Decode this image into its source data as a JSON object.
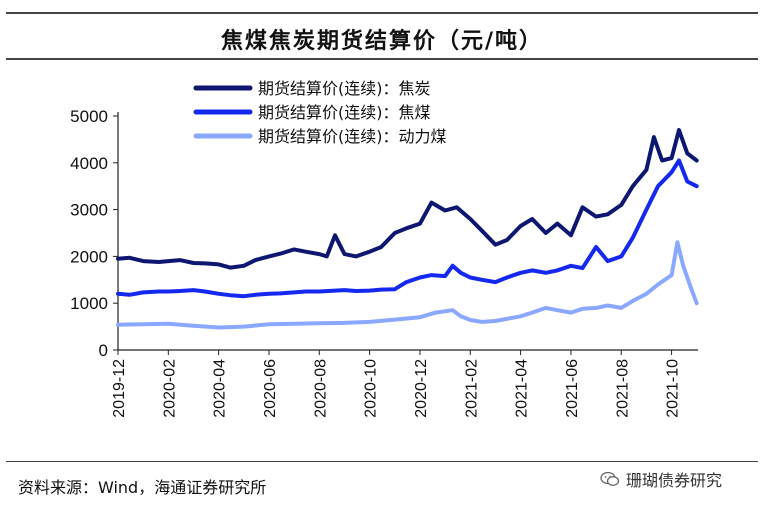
{
  "title": "焦煤焦炭期货结算价（元/吨）",
  "source": "资料来源：Wind，海通证券研究所",
  "watermark": "珊瑚债券研究",
  "chart_data": {
    "type": "line",
    "title": "焦煤焦炭期货结算价（元/吨）",
    "xlabel": "",
    "ylabel": "",
    "ylim": [
      0,
      5000
    ],
    "yticks": [
      0,
      1000,
      2000,
      3000,
      4000,
      5000
    ],
    "xlim": [
      "2019-12",
      "2021-11"
    ],
    "xticks": [
      "2019-12",
      "2020-02",
      "2020-04",
      "2020-06",
      "2020-08",
      "2020-10",
      "2020-12",
      "2021-02",
      "2021-04",
      "2021-06",
      "2021-08",
      "2021-10"
    ],
    "legend_position": "top",
    "series": [
      {
        "name": "期货结算价(连续)：焦炭",
        "color": "#0d1670",
        "points": [
          [
            "2019-12-01",
            1950
          ],
          [
            "2019-12-15",
            1970
          ],
          [
            "2020-01-01",
            1900
          ],
          [
            "2020-01-20",
            1880
          ],
          [
            "2020-02-01",
            1900
          ],
          [
            "2020-02-15",
            1920
          ],
          [
            "2020-03-01",
            1860
          ],
          [
            "2020-03-15",
            1850
          ],
          [
            "2020-04-01",
            1830
          ],
          [
            "2020-04-15",
            1760
          ],
          [
            "2020-05-01",
            1800
          ],
          [
            "2020-05-15",
            1920
          ],
          [
            "2020-06-01",
            2000
          ],
          [
            "2020-06-15",
            2060
          ],
          [
            "2020-07-01",
            2150
          ],
          [
            "2020-07-15",
            2100
          ],
          [
            "2020-08-01",
            2050
          ],
          [
            "2020-08-10",
            2000
          ],
          [
            "2020-08-20",
            2450
          ],
          [
            "2020-09-01",
            2050
          ],
          [
            "2020-09-15",
            2000
          ],
          [
            "2020-10-01",
            2100
          ],
          [
            "2020-10-15",
            2200
          ],
          [
            "2020-11-01",
            2500
          ],
          [
            "2020-11-15",
            2600
          ],
          [
            "2020-12-01",
            2700
          ],
          [
            "2020-12-15",
            3150
          ],
          [
            "2021-01-01",
            2980
          ],
          [
            "2021-01-15",
            3050
          ],
          [
            "2021-02-01",
            2800
          ],
          [
            "2021-02-15",
            2550
          ],
          [
            "2021-03-01",
            2250
          ],
          [
            "2021-03-15",
            2350
          ],
          [
            "2021-04-01",
            2650
          ],
          [
            "2021-04-15",
            2800
          ],
          [
            "2021-05-01",
            2500
          ],
          [
            "2021-05-15",
            2700
          ],
          [
            "2021-06-01",
            2450
          ],
          [
            "2021-06-15",
            3050
          ],
          [
            "2021-07-01",
            2850
          ],
          [
            "2021-07-15",
            2900
          ],
          [
            "2021-08-01",
            3100
          ],
          [
            "2021-08-15",
            3500
          ],
          [
            "2021-09-01",
            3850
          ],
          [
            "2021-09-10",
            4550
          ],
          [
            "2021-09-20",
            4050
          ],
          [
            "2021-10-01",
            4100
          ],
          [
            "2021-10-10",
            4700
          ],
          [
            "2021-10-20",
            4200
          ],
          [
            "2021-11-01",
            4050
          ]
        ]
      },
      {
        "name": "期货结算价(连续)：焦煤",
        "color": "#1428f0",
        "points": [
          [
            "2019-12-01",
            1200
          ],
          [
            "2019-12-15",
            1180
          ],
          [
            "2020-01-01",
            1230
          ],
          [
            "2020-01-20",
            1250
          ],
          [
            "2020-02-01",
            1250
          ],
          [
            "2020-02-15",
            1260
          ],
          [
            "2020-03-01",
            1280
          ],
          [
            "2020-03-15",
            1250
          ],
          [
            "2020-04-01",
            1200
          ],
          [
            "2020-04-15",
            1170
          ],
          [
            "2020-05-01",
            1150
          ],
          [
            "2020-05-15",
            1180
          ],
          [
            "2020-06-01",
            1200
          ],
          [
            "2020-06-15",
            1210
          ],
          [
            "2020-07-01",
            1230
          ],
          [
            "2020-07-15",
            1250
          ],
          [
            "2020-08-01",
            1250
          ],
          [
            "2020-08-20",
            1270
          ],
          [
            "2020-09-01",
            1280
          ],
          [
            "2020-09-15",
            1260
          ],
          [
            "2020-10-01",
            1270
          ],
          [
            "2020-10-15",
            1290
          ],
          [
            "2020-11-01",
            1300
          ],
          [
            "2020-11-15",
            1450
          ],
          [
            "2020-12-01",
            1550
          ],
          [
            "2020-12-15",
            1600
          ],
          [
            "2021-01-01",
            1580
          ],
          [
            "2021-01-10",
            1800
          ],
          [
            "2021-01-20",
            1650
          ],
          [
            "2021-02-01",
            1550
          ],
          [
            "2021-02-15",
            1500
          ],
          [
            "2021-03-01",
            1450
          ],
          [
            "2021-03-15",
            1550
          ],
          [
            "2021-04-01",
            1650
          ],
          [
            "2021-04-15",
            1700
          ],
          [
            "2021-05-01",
            1650
          ],
          [
            "2021-05-15",
            1700
          ],
          [
            "2021-06-01",
            1800
          ],
          [
            "2021-06-15",
            1750
          ],
          [
            "2021-07-01",
            2200
          ],
          [
            "2021-07-15",
            1900
          ],
          [
            "2021-08-01",
            2000
          ],
          [
            "2021-08-15",
            2400
          ],
          [
            "2021-09-01",
            3000
          ],
          [
            "2021-09-15",
            3500
          ],
          [
            "2021-10-01",
            3800
          ],
          [
            "2021-10-10",
            4050
          ],
          [
            "2021-10-20",
            3600
          ],
          [
            "2021-11-01",
            3500
          ]
        ]
      },
      {
        "name": "期货结算价(连续)：动力煤",
        "color": "#8aa8ff",
        "points": [
          [
            "2019-12-01",
            540
          ],
          [
            "2020-01-01",
            550
          ],
          [
            "2020-02-01",
            560
          ],
          [
            "2020-03-01",
            520
          ],
          [
            "2020-04-01",
            480
          ],
          [
            "2020-05-01",
            500
          ],
          [
            "2020-06-01",
            550
          ],
          [
            "2020-07-01",
            560
          ],
          [
            "2020-08-01",
            570
          ],
          [
            "2020-09-01",
            580
          ],
          [
            "2020-10-01",
            600
          ],
          [
            "2020-11-01",
            650
          ],
          [
            "2020-12-01",
            700
          ],
          [
            "2020-12-20",
            800
          ],
          [
            "2021-01-10",
            850
          ],
          [
            "2021-01-20",
            720
          ],
          [
            "2021-02-01",
            640
          ],
          [
            "2021-02-15",
            600
          ],
          [
            "2021-03-01",
            620
          ],
          [
            "2021-04-01",
            720
          ],
          [
            "2021-04-15",
            800
          ],
          [
            "2021-05-01",
            900
          ],
          [
            "2021-05-15",
            850
          ],
          [
            "2021-06-01",
            800
          ],
          [
            "2021-06-15",
            880
          ],
          [
            "2021-07-01",
            900
          ],
          [
            "2021-07-15",
            950
          ],
          [
            "2021-08-01",
            900
          ],
          [
            "2021-08-15",
            1050
          ],
          [
            "2021-09-01",
            1200
          ],
          [
            "2021-09-15",
            1400
          ],
          [
            "2021-10-01",
            1600
          ],
          [
            "2021-10-08",
            2300
          ],
          [
            "2021-10-15",
            1800
          ],
          [
            "2021-10-25",
            1300
          ],
          [
            "2021-11-01",
            1000
          ]
        ]
      }
    ]
  }
}
